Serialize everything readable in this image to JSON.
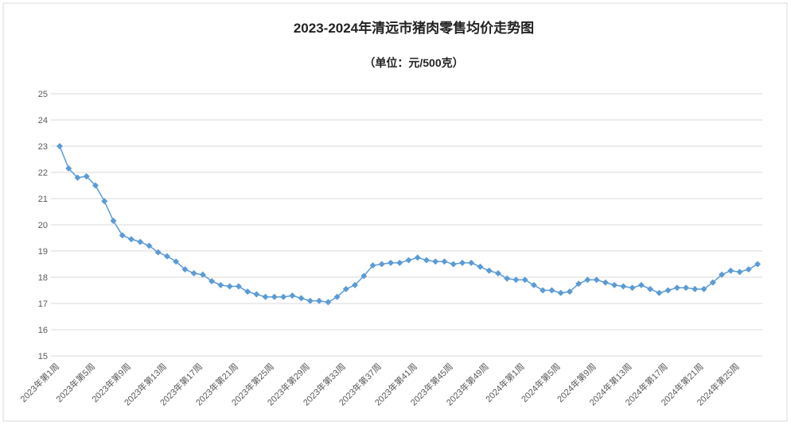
{
  "chart_data": {
    "type": "line",
    "title": "2023-2024年清远市猪肉零售均价走势图",
    "subtitle": "（单位：元/500克）",
    "categories": [
      "2023年第1周",
      null,
      null,
      null,
      "2023年第5周",
      null,
      null,
      null,
      "2023年第9周",
      null,
      null,
      null,
      "2023年第13周",
      null,
      null,
      null,
      "2023年第17周",
      null,
      null,
      null,
      "2023年第21周",
      null,
      null,
      null,
      "2023年第25周",
      null,
      null,
      null,
      "2023年第29周",
      null,
      null,
      null,
      "2023年第33周",
      null,
      null,
      null,
      "2023年第37周",
      null,
      null,
      null,
      "2023年第41周",
      null,
      null,
      null,
      "2023年第45周",
      null,
      null,
      null,
      "2023年第49周",
      null,
      null,
      null,
      "2024年第1周",
      null,
      null,
      null,
      "2024年第5周",
      null,
      null,
      null,
      "2024年第9周",
      null,
      null,
      null,
      "2024年第13周",
      null,
      null,
      null,
      "2024年第17周",
      null,
      null,
      null,
      "2024年第21周",
      null,
      null,
      null,
      "2024年第25周",
      null,
      null
    ],
    "series": [
      {
        "color": "#5b9bd5",
        "values": [
          23.0,
          22.15,
          21.8,
          21.85,
          21.5,
          20.9,
          20.15,
          19.6,
          19.45,
          19.35,
          19.2,
          18.95,
          18.8,
          18.6,
          18.3,
          18.15,
          18.1,
          17.85,
          17.7,
          17.65,
          17.65,
          17.45,
          17.35,
          17.25,
          17.25,
          17.25,
          17.3,
          17.2,
          17.1,
          17.1,
          17.05,
          17.25,
          17.55,
          17.7,
          18.05,
          18.45,
          18.5,
          18.55,
          18.55,
          18.65,
          18.75,
          18.65,
          18.6,
          18.6,
          18.5,
          18.55,
          18.55,
          18.4,
          18.25,
          18.15,
          17.95,
          17.9,
          17.9,
          17.7,
          17.5,
          17.5,
          17.4,
          17.45,
          17.75,
          17.9,
          17.9,
          17.8,
          17.7,
          17.65,
          17.6,
          17.7,
          17.55,
          17.4,
          17.5,
          17.6,
          17.6,
          17.55,
          17.55,
          17.8,
          18.1,
          18.25,
          18.2,
          18.3,
          18.5
        ]
      }
    ],
    "ylim": [
      15,
      25
    ],
    "yticks": [
      15,
      16,
      17,
      18,
      19,
      20,
      21,
      22,
      23,
      24,
      25
    ],
    "grid": true
  }
}
